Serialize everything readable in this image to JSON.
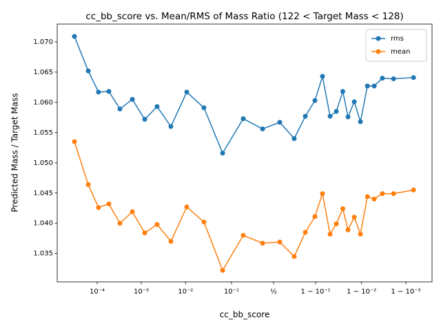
{
  "chart_data": {
    "type": "line",
    "title": "cc_bb_score vs. Mean/RMS of Mass Ratio (122 < Target Mass < 128)",
    "xlabel": "cc_bb_score",
    "ylabel": "Predicted Mass / Target Mass",
    "xscale": "logit",
    "legend": "upper right",
    "x": [
      3.05e-05,
      6.27e-05,
      0.000107,
      0.000184,
      0.000328,
      0.000626,
      0.001196,
      0.00228,
      0.00467,
      0.01063,
      0.0257,
      0.0653,
      0.1703,
      0.36,
      0.58,
      0.746,
      0.84,
      0.8965,
      0.9278,
      0.9503,
      0.9636,
      0.9738,
      0.9799,
      0.9854,
      0.9894,
      0.9926,
      0.9948,
      0.9966,
      0.9981,
      0.99933
    ],
    "series": [
      {
        "name": "rms",
        "color": "#1f77b4",
        "values": [
          1.0709,
          1.0652,
          1.0617,
          1.0618,
          1.0589,
          1.0605,
          1.0572,
          1.0593,
          1.056,
          1.0617,
          1.0591,
          1.0516,
          1.0573,
          1.0556,
          1.0567,
          1.054,
          1.0577,
          1.0603,
          1.0643,
          1.0577,
          1.0585,
          1.0618,
          1.0576,
          1.0601,
          1.0568,
          1.0627,
          1.0627,
          1.064,
          1.0639,
          1.0641
        ]
      },
      {
        "name": "mean",
        "color": "#ff7f0e",
        "values": [
          1.0535,
          1.0464,
          1.0426,
          1.0432,
          1.04,
          1.0419,
          1.0384,
          1.0398,
          1.037,
          1.0427,
          1.0402,
          1.0322,
          1.038,
          1.0367,
          1.0369,
          1.0345,
          1.0385,
          1.0411,
          1.0449,
          1.0382,
          1.0399,
          1.0424,
          1.0389,
          1.041,
          1.0382,
          1.0444,
          1.044,
          1.0449,
          1.0449,
          1.0455
        ]
      }
    ],
    "xlim": [
      1.24e-05,
      0.999745
    ],
    "xticks": [
      {
        "value": 0.0001,
        "label": "10⁻⁴"
      },
      {
        "value": 0.001,
        "label": "10⁻³"
      },
      {
        "value": 0.01,
        "label": "10⁻²"
      },
      {
        "value": 0.1,
        "label": "10⁻¹"
      },
      {
        "value": 0.5,
        "label": "½"
      },
      {
        "value": 0.9,
        "label": "1 − 10⁻¹"
      },
      {
        "value": 0.99,
        "label": "1 − 10⁻²"
      },
      {
        "value": 0.999,
        "label": "1 − 10⁻³"
      }
    ],
    "ylim": [
      1.0303,
      1.07295
    ],
    "yticks": [
      1.035,
      {
        "value": 1.04,
        "label": "1.040"
      },
      1.045,
      {
        "value": 1.05,
        "label": "1.050"
      },
      1.055,
      {
        "value": 1.06,
        "label": "1.060"
      },
      1.065,
      {
        "value": 1.07,
        "label": "1.070"
      }
    ]
  }
}
